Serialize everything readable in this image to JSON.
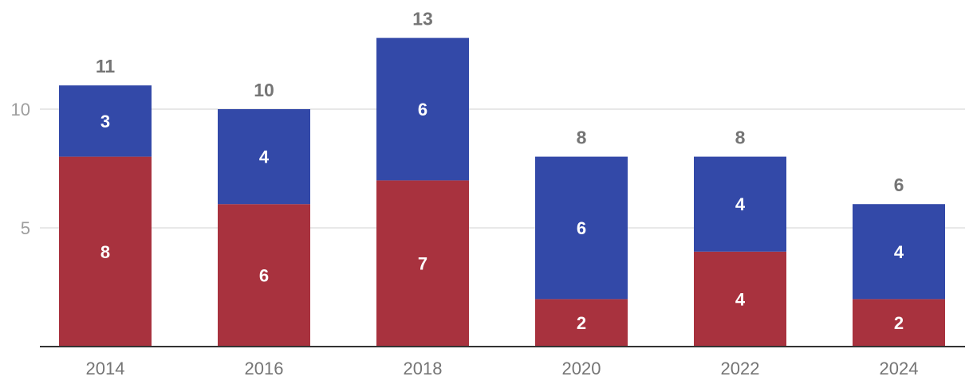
{
  "chart_data": {
    "type": "bar",
    "stacked": true,
    "title": "",
    "xlabel": "",
    "ylabel": "",
    "categories": [
      "2014",
      "2016",
      "2018",
      "2020",
      "2022",
      "2024"
    ],
    "series": [
      {
        "name": "",
        "color": "#a8323e",
        "values": [
          8,
          6,
          7,
          2,
          4,
          2
        ]
      },
      {
        "name": "",
        "color": "#3349a8",
        "values": [
          3,
          4,
          6,
          6,
          4,
          4
        ]
      }
    ],
    "totals": [
      11,
      10,
      13,
      8,
      8,
      6
    ],
    "ylim": [
      0,
      13
    ],
    "yticks": [
      5,
      10
    ],
    "grid": true,
    "legend": "none"
  }
}
